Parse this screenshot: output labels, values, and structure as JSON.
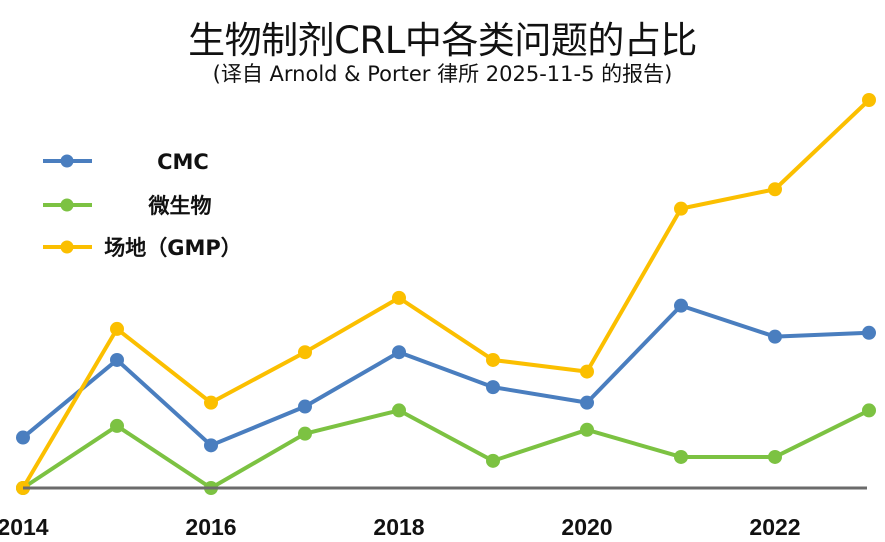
{
  "chart_data": {
    "type": "line",
    "title": "生物制剂CRL中各类问题的占比",
    "subtitle": "(译自 Arnold & Porter 律所 2025-11-5 的报告)",
    "xlabel": "",
    "ylabel": "",
    "x": [
      2014,
      2015,
      2016,
      2017,
      2018,
      2019,
      2020,
      2021,
      2022,
      2023
    ],
    "xticks": [
      "2014",
      "2016",
      "2018",
      "2020",
      "2022"
    ],
    "xtick_values": [
      2014,
      2016,
      2018,
      2020,
      2022
    ],
    "ylim": [
      0,
      100
    ],
    "y_units": "relative (no y-axis shown; 0 = baseline, 100 = highest point)",
    "grid": false,
    "legend_position": "top-left",
    "series": [
      {
        "name": "CMC",
        "color": "#4a7ebf",
        "values": [
          13,
          33,
          11,
          21,
          35,
          26,
          22,
          47,
          39,
          40
        ]
      },
      {
        "name": "微生物",
        "color": "#7cc242",
        "values": [
          0,
          16,
          0,
          14,
          20,
          7,
          15,
          8,
          8,
          20
        ]
      },
      {
        "name": "场地（GMP）",
        "color": "#fbbf00",
        "values": [
          0,
          41,
          22,
          35,
          49,
          33,
          30,
          72,
          77,
          100
        ]
      }
    ]
  }
}
